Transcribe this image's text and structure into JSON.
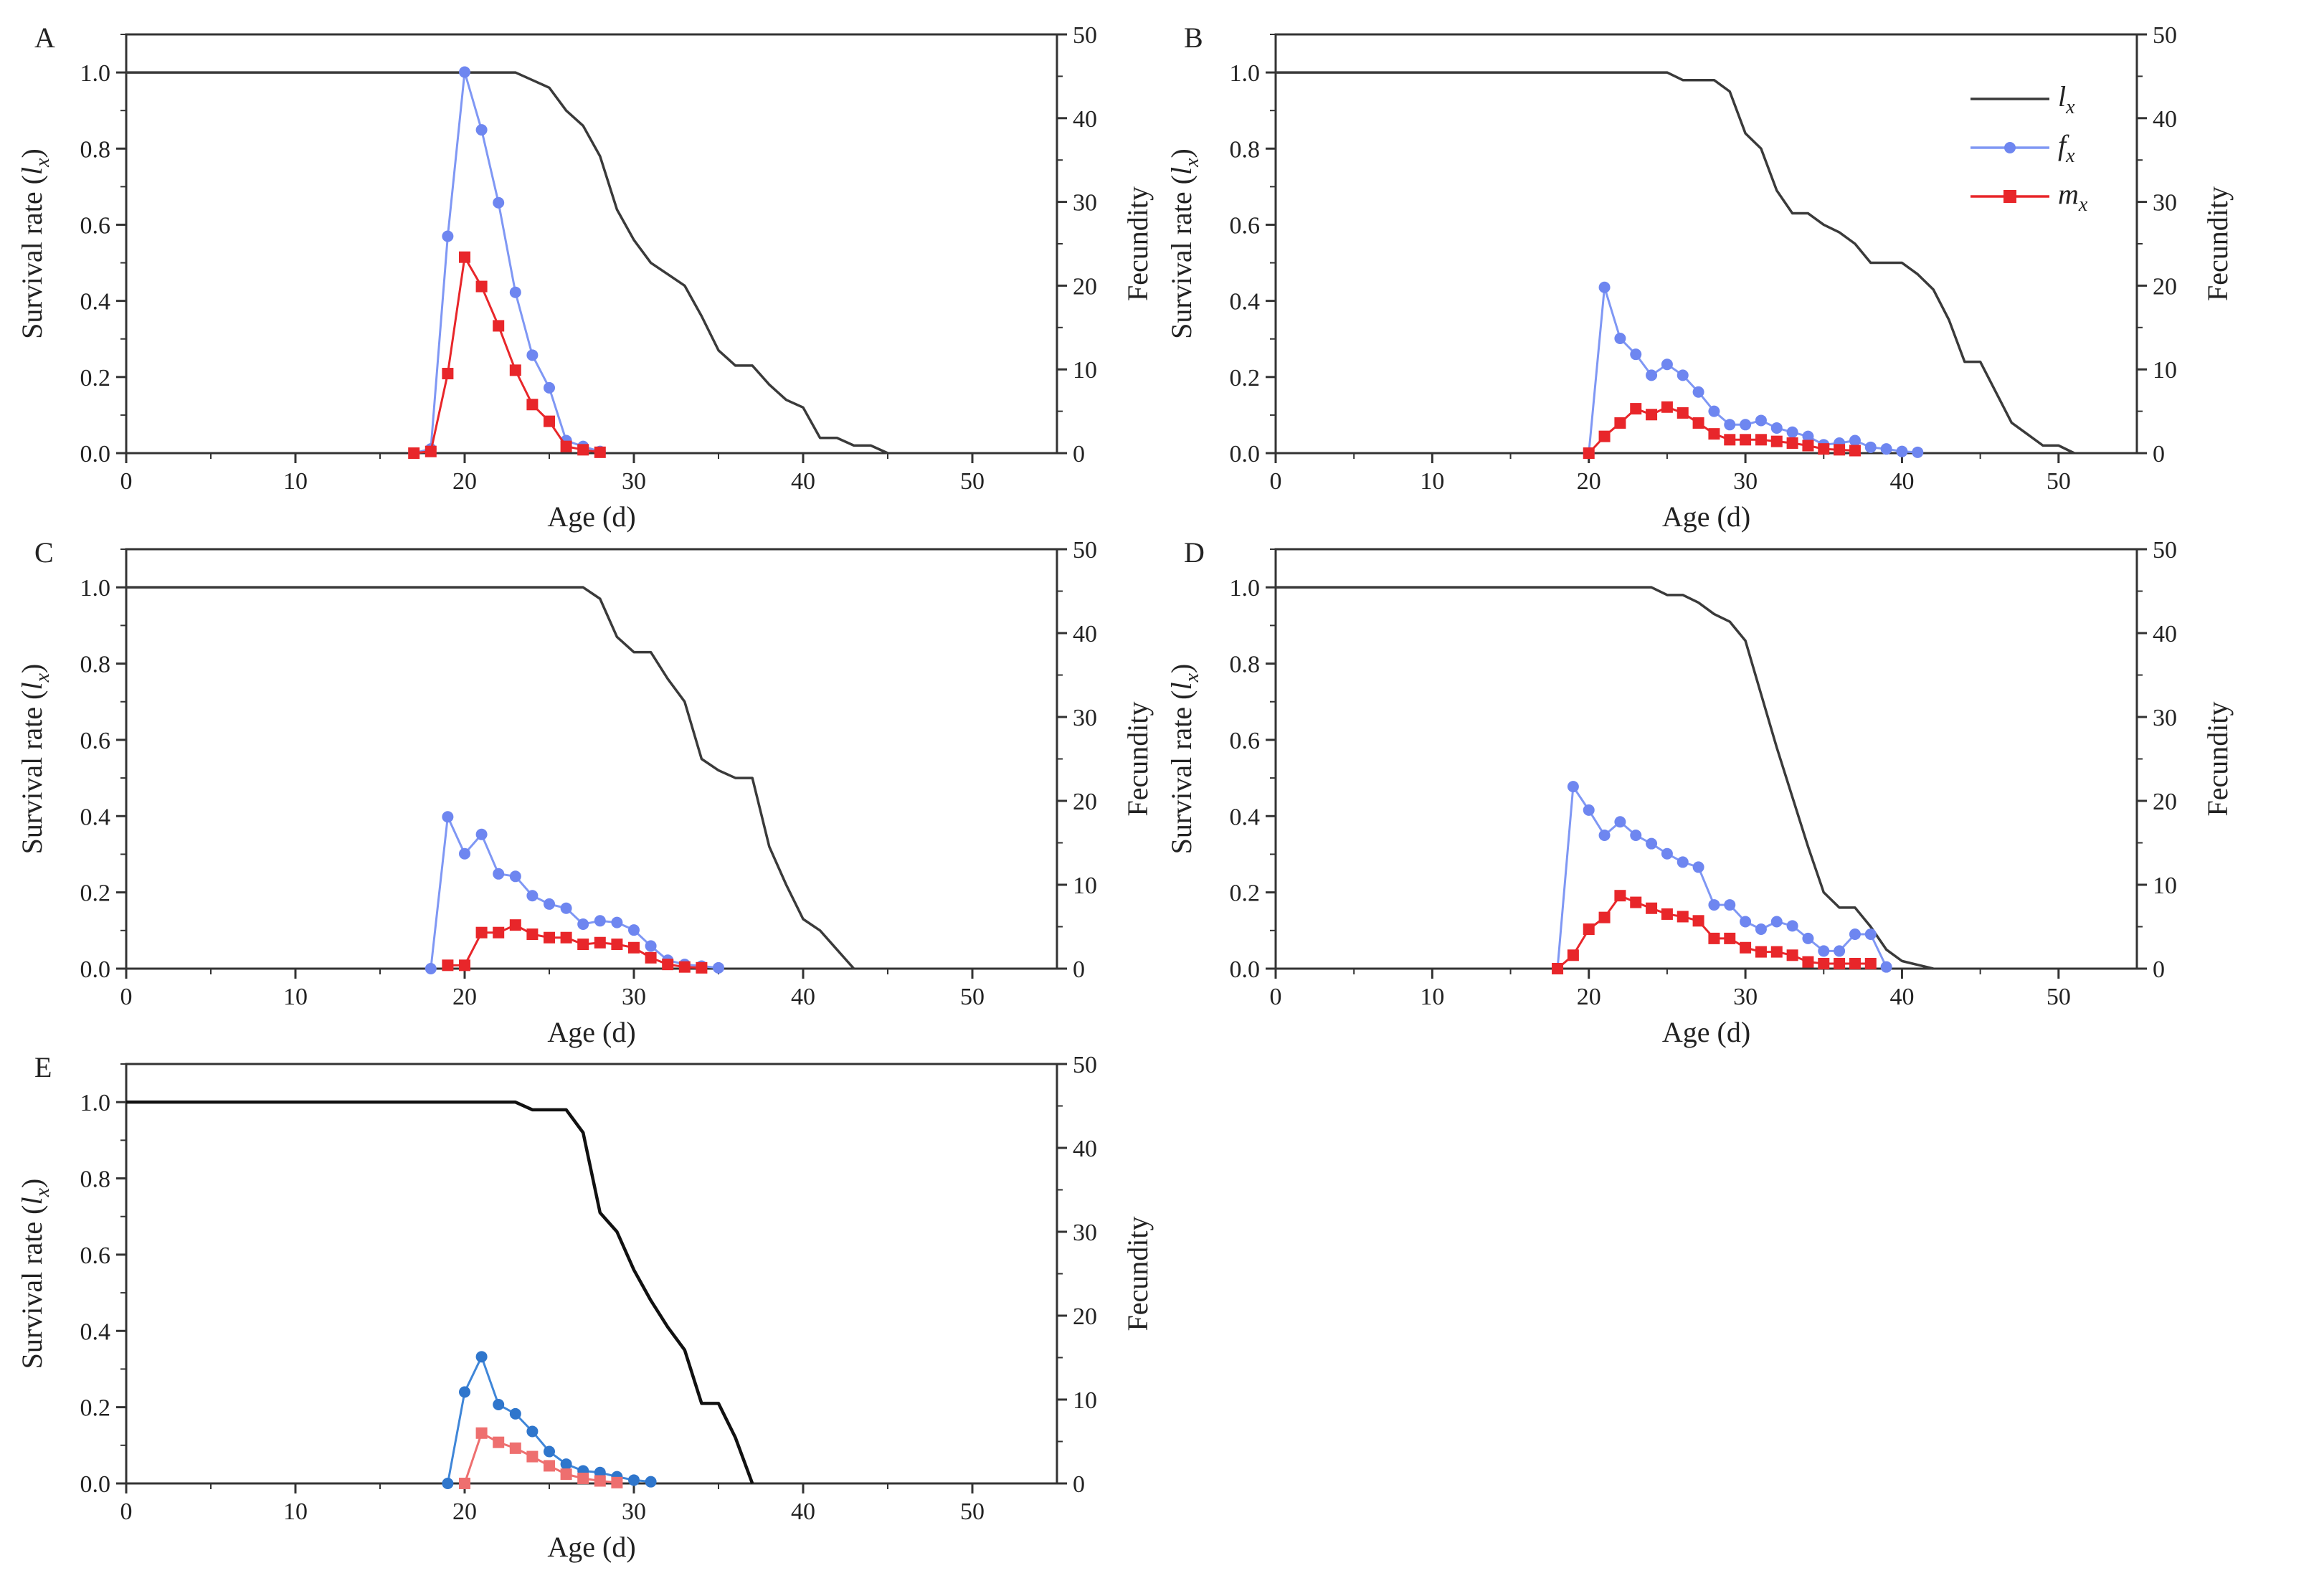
{
  "figure": {
    "title": ""
  },
  "legend": {
    "lx": "l",
    "lx_sub": "x",
    "fx": "f",
    "fx_sub": "x",
    "mx": "m",
    "mx_sub": "x"
  },
  "axes": {
    "xlabel": "Age (d)",
    "ylabel_main": "Survival rate (",
    "ylabel_l": "l",
    "ylabel_sub": "x",
    "ylabel_close": ")",
    "y2label": "Fecundity",
    "xticks": [
      "0",
      "10",
      "20",
      "30",
      "40",
      "50"
    ],
    "yticks": [
      "0.0",
      "0.2",
      "0.4",
      "0.6",
      "0.8",
      "1.0"
    ],
    "y2ticks": [
      "0",
      "10",
      "20",
      "30",
      "40",
      "50"
    ],
    "xlim": [
      0,
      55
    ],
    "ylim": [
      0,
      1.1
    ],
    "y2lim": [
      0,
      50
    ]
  },
  "colors": {
    "lx": "#3a3a3a",
    "fx_line": "#7f97f4",
    "fx_marker": "#6e86f0",
    "mx": "#e8262a",
    "E_fx_line": "#3f86d8",
    "E_fx_marker": "#2f76cc",
    "E_mx": "#ee6f6f"
  },
  "chart_data": [
    {
      "panel": "A",
      "type": "line",
      "lx": {
        "x": [
          0,
          23,
          24,
          25,
          26,
          27,
          28,
          29,
          30,
          31,
          32,
          33,
          34,
          35,
          36,
          37,
          38,
          39,
          40,
          41,
          42,
          43,
          44,
          45
        ],
        "y": [
          1.0,
          1.0,
          0.98,
          0.96,
          0.9,
          0.86,
          0.78,
          0.64,
          0.56,
          0.5,
          0.47,
          0.44,
          0.36,
          0.27,
          0.23,
          0.23,
          0.18,
          0.14,
          0.12,
          0.04,
          0.04,
          0.02,
          0.02,
          0.0
        ]
      },
      "fx": {
        "x": [
          17,
          18,
          19,
          20,
          21,
          22,
          23,
          24,
          25,
          26,
          27,
          28
        ],
        "y": [
          0,
          0.5,
          25.9,
          45.5,
          38.6,
          29.9,
          19.2,
          11.7,
          7.8,
          1.5,
          0.8,
          0.2
        ]
      },
      "mx": {
        "x": [
          17,
          18,
          19,
          20,
          21,
          22,
          23,
          24,
          25,
          26,
          27,
          28
        ],
        "y": [
          0,
          0.2,
          9.5,
          23.4,
          19.9,
          15.2,
          9.9,
          5.8,
          3.8,
          0.8,
          0.4,
          0.1
        ]
      }
    },
    {
      "panel": "B",
      "type": "line",
      "lx": {
        "x": [
          0,
          25,
          26,
          27,
          28,
          29,
          30,
          31,
          32,
          33,
          34,
          35,
          36,
          37,
          38,
          39,
          40,
          41,
          42,
          43,
          44,
          45,
          46,
          47,
          48,
          49,
          50,
          51
        ],
        "y": [
          1.0,
          1.0,
          0.98,
          0.98,
          0.98,
          0.95,
          0.84,
          0.8,
          0.69,
          0.63,
          0.63,
          0.6,
          0.58,
          0.55,
          0.5,
          0.5,
          0.5,
          0.47,
          0.43,
          0.35,
          0.24,
          0.24,
          0.16,
          0.08,
          0.05,
          0.02,
          0.02,
          0.0
        ]
      },
      "fx": {
        "x": [
          20,
          21,
          22,
          23,
          24,
          25,
          26,
          27,
          28,
          29,
          30,
          31,
          32,
          33,
          34,
          35,
          36,
          37,
          38,
          39,
          40,
          41
        ],
        "y": [
          0,
          19.8,
          13.7,
          11.8,
          9.3,
          10.6,
          9.3,
          7.3,
          5.0,
          3.4,
          3.4,
          3.9,
          3.0,
          2.5,
          2.0,
          1.0,
          1.2,
          1.5,
          0.7,
          0.5,
          0.2,
          0.1
        ]
      },
      "mx": {
        "x": [
          20,
          21,
          22,
          23,
          24,
          25,
          26,
          27,
          28,
          29,
          30,
          31,
          32,
          33,
          34,
          35,
          36,
          37
        ],
        "y": [
          0,
          2.0,
          3.6,
          5.3,
          4.6,
          5.5,
          4.8,
          3.6,
          2.3,
          1.6,
          1.6,
          1.6,
          1.4,
          1.2,
          0.9,
          0.5,
          0.4,
          0.3
        ]
      }
    },
    {
      "panel": "C",
      "type": "line",
      "lx": {
        "x": [
          0,
          27,
          28,
          29,
          30,
          31,
          32,
          33,
          34,
          35,
          36,
          37,
          38,
          39,
          40,
          41,
          42,
          43
        ],
        "y": [
          1.0,
          1.0,
          0.97,
          0.87,
          0.83,
          0.83,
          0.76,
          0.7,
          0.55,
          0.52,
          0.5,
          0.5,
          0.32,
          0.22,
          0.13,
          0.1,
          0.05,
          0.0
        ]
      },
      "fx": {
        "x": [
          18,
          19,
          20,
          21,
          22,
          23,
          24,
          25,
          26,
          27,
          28,
          29,
          30,
          31,
          32,
          33,
          34,
          35
        ],
        "y": [
          0,
          18.1,
          13.7,
          16.0,
          11.3,
          11.0,
          8.7,
          7.7,
          7.2,
          5.3,
          5.7,
          5.5,
          4.6,
          2.7,
          1.0,
          0.5,
          0.3,
          0.1
        ]
      },
      "mx": {
        "x": [
          19,
          20,
          21,
          22,
          23,
          24,
          25,
          26,
          27,
          28,
          29,
          30,
          31,
          32,
          33,
          34
        ],
        "y": [
          0.4,
          0.4,
          4.3,
          4.3,
          5.2,
          4.1,
          3.7,
          3.7,
          2.9,
          3.1,
          2.9,
          2.5,
          1.3,
          0.5,
          0.2,
          0.1
        ]
      }
    },
    {
      "panel": "D",
      "type": "line",
      "lx": {
        "x": [
          0,
          24,
          25,
          26,
          27,
          28,
          29,
          30,
          31,
          32,
          33,
          34,
          35,
          36,
          37,
          38,
          39,
          40,
          41,
          42
        ],
        "y": [
          1.0,
          1.0,
          0.98,
          0.98,
          0.96,
          0.93,
          0.91,
          0.86,
          0.72,
          0.58,
          0.45,
          0.32,
          0.2,
          0.16,
          0.16,
          0.11,
          0.05,
          0.02,
          0.01,
          0.0
        ]
      },
      "fx": {
        "x": [
          18,
          19,
          20,
          21,
          22,
          23,
          24,
          25,
          26,
          27,
          28,
          29,
          30,
          31,
          32,
          33,
          34,
          35,
          36,
          37,
          38,
          39
        ],
        "y": [
          0,
          21.7,
          18.9,
          15.9,
          17.5,
          15.9,
          14.9,
          13.7,
          12.7,
          12.1,
          7.6,
          7.6,
          5.6,
          4.7,
          5.6,
          5.1,
          3.6,
          2.1,
          2.1,
          4.1,
          4.1,
          0.2
        ]
      },
      "mx": {
        "x": [
          18,
          19,
          20,
          21,
          22,
          23,
          24,
          25,
          26,
          27,
          28,
          29,
          30,
          31,
          32,
          33,
          34,
          35,
          36,
          37,
          38
        ],
        "y": [
          0,
          1.6,
          4.7,
          6.1,
          8.7,
          7.9,
          7.2,
          6.5,
          6.2,
          5.7,
          3.6,
          3.6,
          2.5,
          2.0,
          2.0,
          1.6,
          0.8,
          0.6,
          0.6,
          0.6,
          0.6
        ]
      }
    },
    {
      "panel": "E",
      "type": "line",
      "lx": {
        "x": [
          0,
          23,
          24,
          25,
          26,
          27,
          28,
          29,
          30,
          31,
          32,
          33,
          34,
          35,
          36,
          37
        ],
        "y": [
          1.0,
          1.0,
          0.98,
          0.98,
          0.98,
          0.92,
          0.71,
          0.66,
          0.56,
          0.48,
          0.41,
          0.35,
          0.21,
          0.21,
          0.12,
          0.0
        ]
      },
      "fx": {
        "x": [
          19,
          20,
          21,
          22,
          23,
          24,
          25,
          26,
          27,
          28,
          29,
          30,
          31
        ],
        "y": [
          0,
          10.9,
          15.1,
          9.4,
          8.3,
          6.2,
          3.8,
          2.3,
          1.5,
          1.3,
          0.8,
          0.4,
          0.2
        ]
      },
      "mx": {
        "x": [
          20,
          21,
          22,
          23,
          24,
          25,
          26,
          27,
          28,
          29
        ],
        "y": [
          0,
          6.0,
          4.9,
          4.2,
          3.2,
          2.1,
          1.1,
          0.6,
          0.3,
          0.1
        ]
      }
    }
  ]
}
